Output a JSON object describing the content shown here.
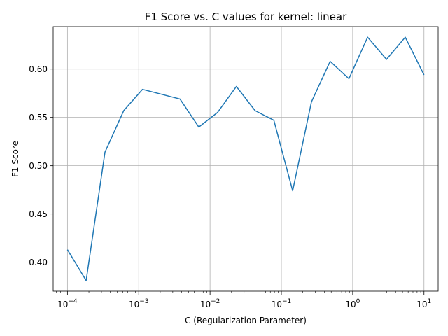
{
  "chart_data": {
    "type": "line",
    "title": "F1 Score vs. C values for kernel: linear",
    "xlabel": "C (Regularization Parameter)",
    "ylabel": "F1 Score",
    "xscale": "log",
    "xlim": [
      6.31e-05,
      15.8
    ],
    "ylim": [
      0.37,
      0.644
    ],
    "grid": true,
    "line_color": "#1f77b4",
    "x_ticks": [
      {
        "value": 0.0001,
        "base": "10",
        "exp": "−4"
      },
      {
        "value": 0.001,
        "base": "10",
        "exp": "−3"
      },
      {
        "value": 0.01,
        "base": "10",
        "exp": "−2"
      },
      {
        "value": 0.1,
        "base": "10",
        "exp": "−1"
      },
      {
        "value": 1,
        "base": "10",
        "exp": "0"
      },
      {
        "value": 10,
        "base": "10",
        "exp": "1"
      }
    ],
    "y_ticks": [
      {
        "value": 0.4,
        "label": "0.40"
      },
      {
        "value": 0.45,
        "label": "0.45"
      },
      {
        "value": 0.5,
        "label": "0.50"
      },
      {
        "value": 0.55,
        "label": "0.55"
      },
      {
        "value": 0.6,
        "label": "0.60"
      }
    ],
    "series": [
      {
        "x": [
          0.0001,
          0.000183,
          0.000336,
          0.000616,
          0.00113,
          0.00207,
          0.00379,
          0.00695,
          0.0127,
          0.0234,
          0.0428,
          0.0785,
          0.144,
          0.264,
          0.483,
          0.886,
          1.62,
          2.98,
          5.46,
          10
        ],
        "y": [
          0.413,
          0.381,
          0.514,
          0.557,
          0.579,
          0.574,
          0.569,
          0.54,
          0.555,
          0.582,
          0.557,
          0.547,
          0.474,
          0.566,
          0.608,
          0.59,
          0.633,
          0.61,
          0.633,
          0.594
        ]
      }
    ]
  }
}
